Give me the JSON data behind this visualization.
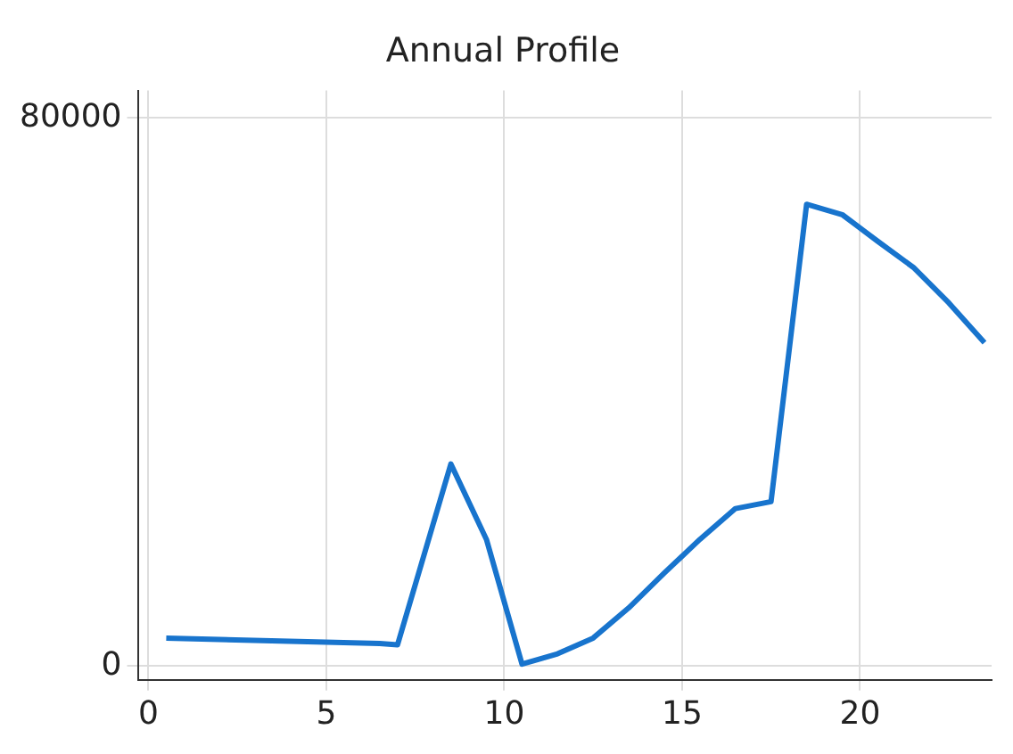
{
  "chart_data": {
    "type": "line",
    "title": "Annual Profile",
    "x": [
      0.5,
      6.5,
      7,
      8.5,
      9.5,
      10.5,
      11.5,
      12.5,
      13.5,
      14.5,
      15.5,
      16.5,
      17.5,
      18.5,
      19.5,
      20.5,
      21.5,
      22.5,
      23.5
    ],
    "series": [
      {
        "color": "#1874cd",
        "values": [
          4100,
          3300,
          3100,
          29500,
          18500,
          300,
          1800,
          4100,
          8500,
          13600,
          18500,
          23000,
          24000,
          67400,
          65900,
          62000,
          58200,
          53000,
          47200
        ]
      }
    ],
    "xlim": [
      -0.3,
      23.7
    ],
    "xticks": [
      0,
      5,
      10,
      15,
      20
    ],
    "ylim": [
      -2000,
      84000
    ],
    "yticks": [
      0,
      80000
    ],
    "grid": true,
    "legend": false,
    "marker": "none",
    "line_style": "solid"
  }
}
